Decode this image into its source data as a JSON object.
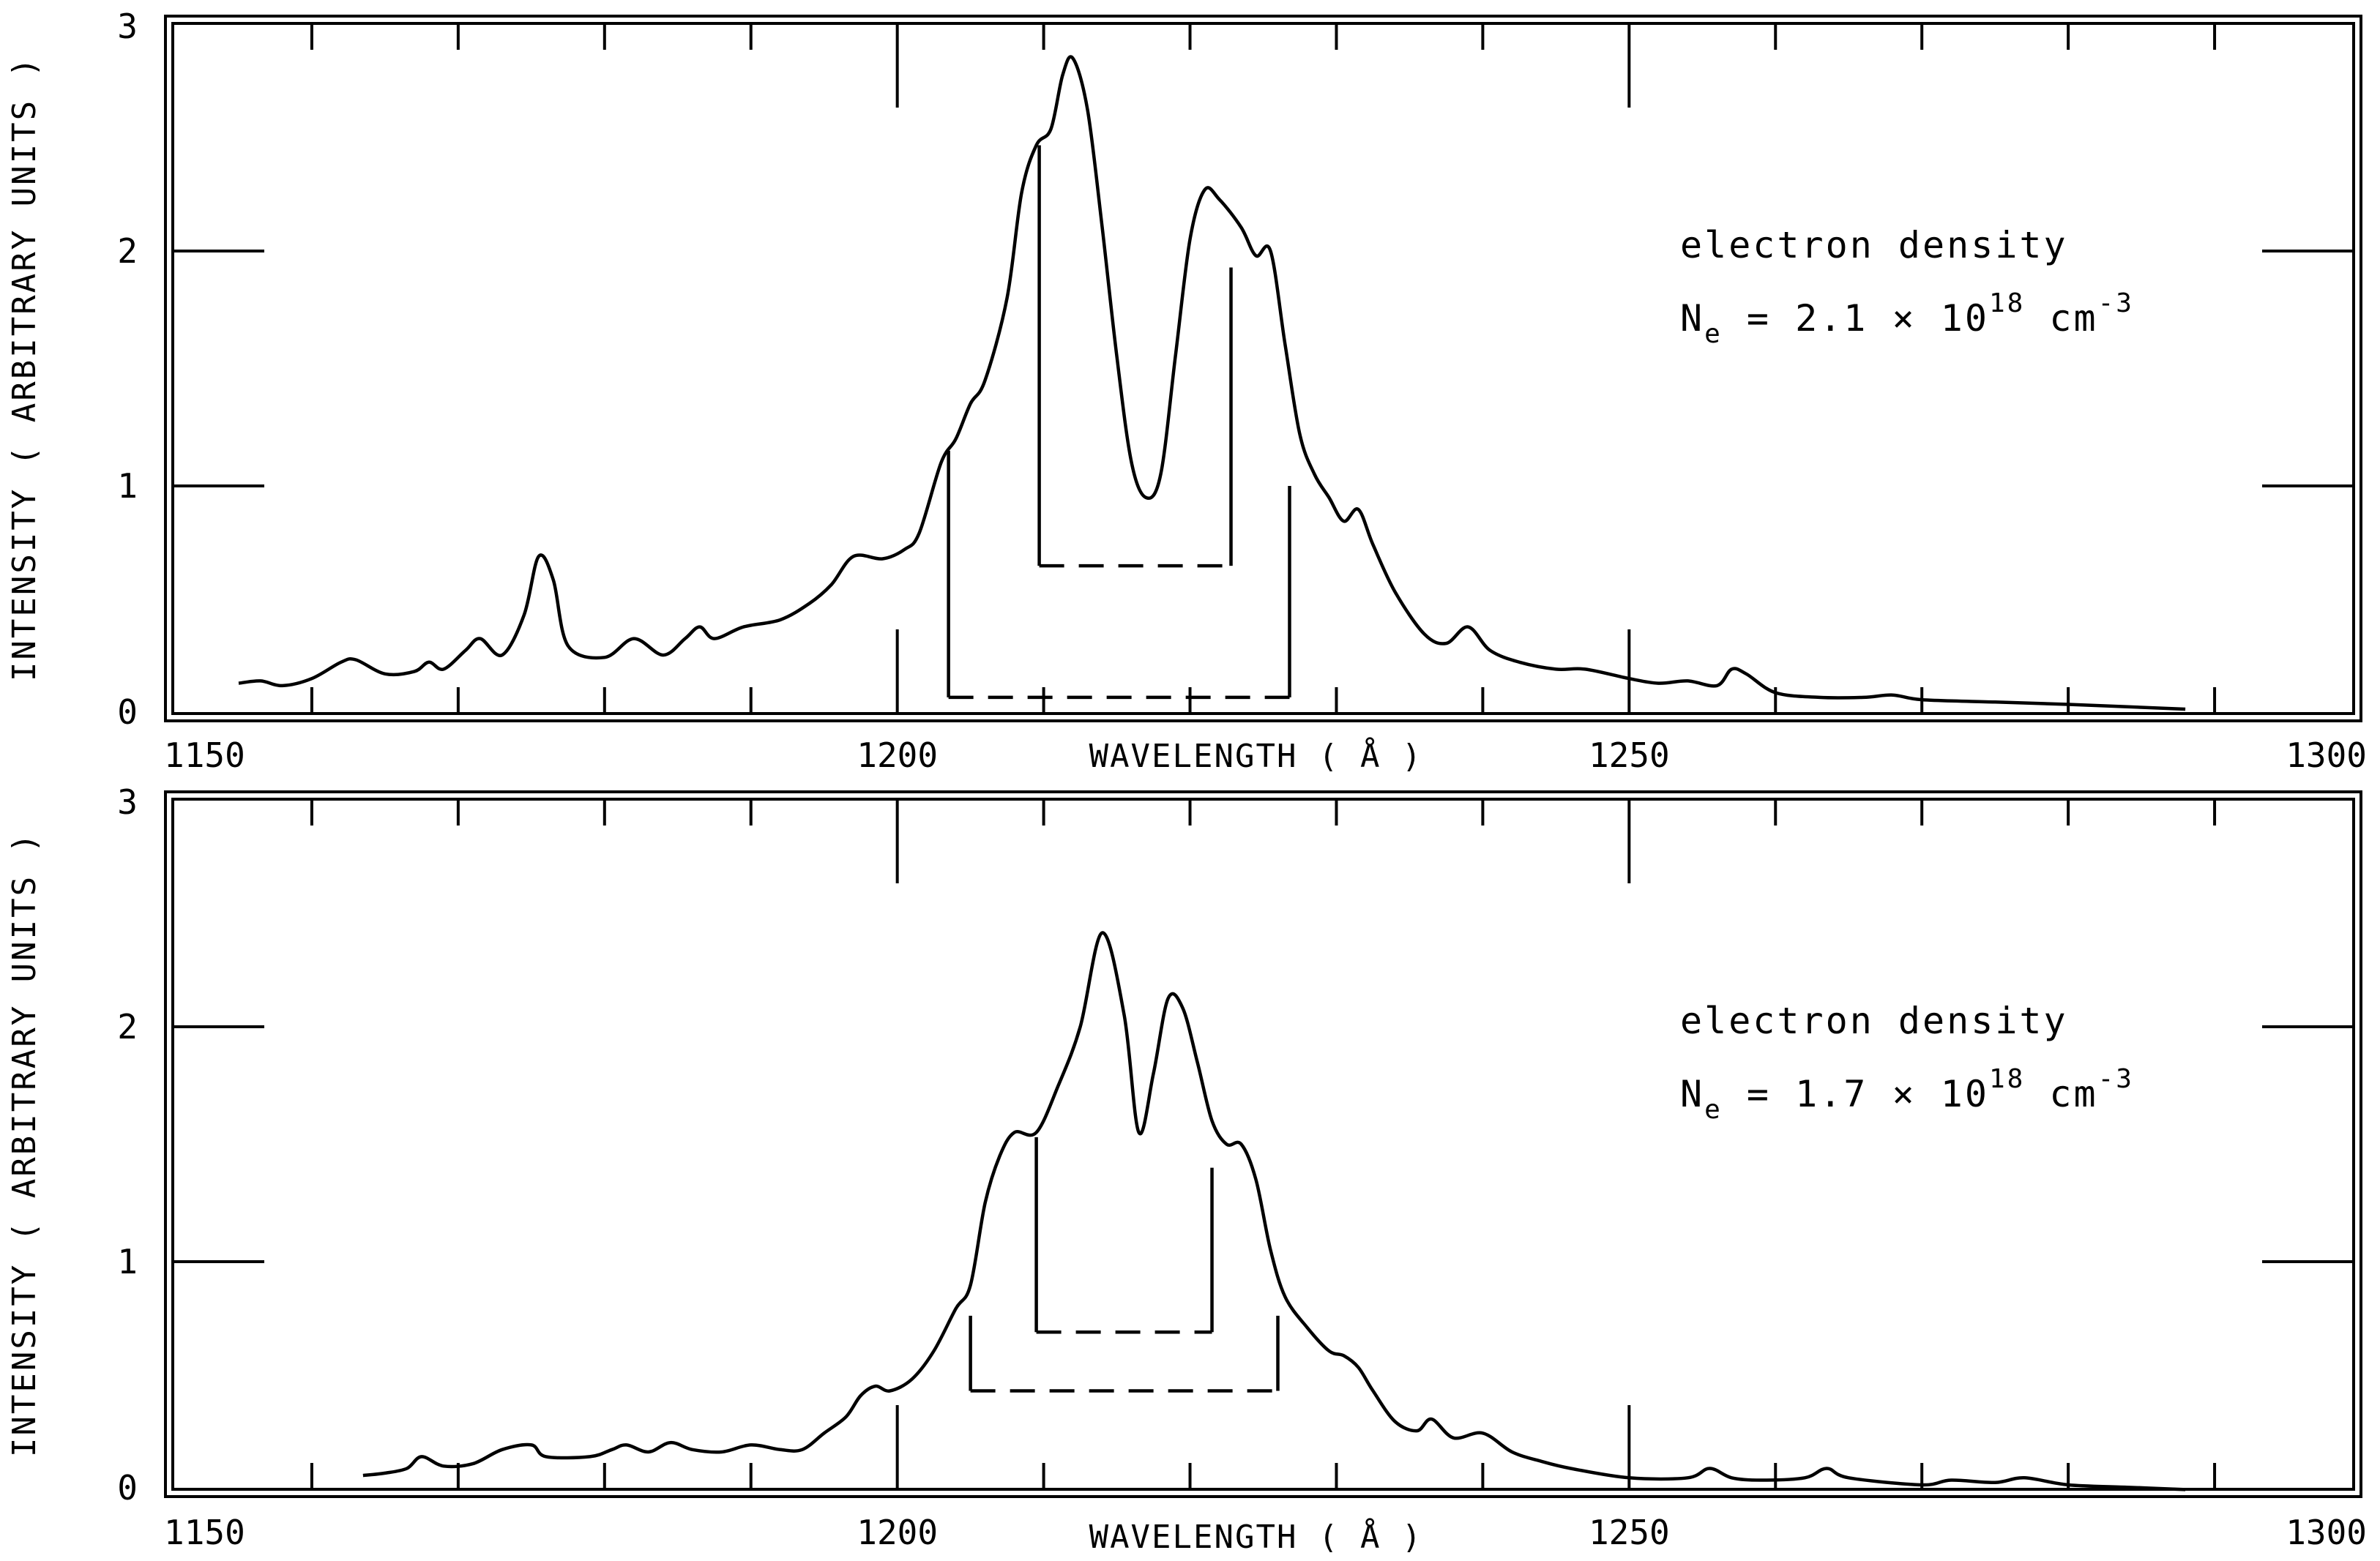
{
  "chart_data": [
    {
      "type": "line",
      "panel": "top",
      "xlabel": "WAVELENGTH ( Å )",
      "ylabel": "INTENSITY ( ARBITRARY UNITS )",
      "xlim": [
        1150,
        1300
      ],
      "ylim": [
        0,
        3
      ],
      "x_ticks": [
        1150,
        1200,
        1250,
        1300
      ],
      "y_ticks": [
        0,
        1,
        2,
        3
      ],
      "grid": false,
      "annotation": {
        "line1": "electron density",
        "ne_prefix": "N",
        "ne_sub": "e",
        "ne_mid": "= 2.1 × 10",
        "ne_exp": "18",
        "ne_unit": " cm",
        "ne_unit_exp": "-3"
      },
      "series": [
        {
          "name": "spectrum",
          "points": [
            [
              1155,
              0.16
            ],
            [
              1156.5,
              0.17
            ],
            [
              1158,
              0.15
            ],
            [
              1160,
              0.18
            ],
            [
              1162,
              0.25
            ],
            [
              1163,
              0.26
            ],
            [
              1165,
              0.2
            ],
            [
              1167,
              0.21
            ],
            [
              1168,
              0.25
            ],
            [
              1169,
              0.22
            ],
            [
              1170.5,
              0.3
            ],
            [
              1171.5,
              0.35
            ],
            [
              1173,
              0.28
            ],
            [
              1174.5,
              0.45
            ],
            [
              1175.5,
              0.7
            ],
            [
              1176.5,
              0.6
            ],
            [
              1177.5,
              0.32
            ],
            [
              1180,
              0.27
            ],
            [
              1182,
              0.35
            ],
            [
              1184,
              0.28
            ],
            [
              1185.5,
              0.35
            ],
            [
              1186.5,
              0.4
            ],
            [
              1187.5,
              0.35
            ],
            [
              1189.5,
              0.4
            ],
            [
              1192,
              0.43
            ],
            [
              1194,
              0.5
            ],
            [
              1195.5,
              0.58
            ],
            [
              1197,
              0.7
            ],
            [
              1199,
              0.69
            ],
            [
              1200.5,
              0.73
            ],
            [
              1201.5,
              0.8
            ],
            [
              1203,
              1.1
            ],
            [
              1204,
              1.2
            ],
            [
              1205,
              1.35
            ],
            [
              1206,
              1.45
            ],
            [
              1207.5,
              1.8
            ],
            [
              1208.5,
              2.25
            ],
            [
              1209.5,
              2.45
            ],
            [
              1210.5,
              2.52
            ],
            [
              1211.3,
              2.75
            ],
            [
              1212,
              2.82
            ],
            [
              1213,
              2.6
            ],
            [
              1214,
              2.1
            ],
            [
              1215,
              1.55
            ],
            [
              1216,
              1.1
            ],
            [
              1217,
              0.95
            ],
            [
              1218,
              1.05
            ],
            [
              1219,
              1.55
            ],
            [
              1220,
              2.05
            ],
            [
              1221,
              2.26
            ],
            [
              1222,
              2.22
            ],
            [
              1223.5,
              2.1
            ],
            [
              1224.5,
              1.98
            ],
            [
              1225.5,
              2.0
            ],
            [
              1226.5,
              1.6
            ],
            [
              1227.5,
              1.22
            ],
            [
              1228.5,
              1.05
            ],
            [
              1229.5,
              0.95
            ],
            [
              1230.5,
              0.85
            ],
            [
              1231.5,
              0.9
            ],
            [
              1232.5,
              0.75
            ],
            [
              1234,
              0.55
            ],
            [
              1236,
              0.37
            ],
            [
              1237.5,
              0.33
            ],
            [
              1239,
              0.4
            ],
            [
              1240.5,
              0.3
            ],
            [
              1242.5,
              0.25
            ],
            [
              1245,
              0.22
            ],
            [
              1247,
              0.22
            ],
            [
              1250,
              0.18
            ],
            [
              1252,
              0.16
            ],
            [
              1254,
              0.17
            ],
            [
              1256,
              0.15
            ],
            [
              1257,
              0.22
            ],
            [
              1258,
              0.2
            ],
            [
              1260,
              0.12
            ],
            [
              1263,
              0.1
            ],
            [
              1266,
              0.1
            ],
            [
              1268,
              0.11
            ],
            [
              1270,
              0.09
            ],
            [
              1275,
              0.08
            ],
            [
              1280,
              0.07
            ],
            [
              1288,
              0.05
            ]
          ]
        }
      ],
      "brackets": [
        {
          "x_left": 1203.5,
          "x_right": 1226.8,
          "y_left_top": 1.15,
          "y_right_top": 1.0,
          "y_base": 0.1
        },
        {
          "x_left": 1209.7,
          "x_right": 1222.8,
          "y_left_top": 2.45,
          "y_right_top": 1.93,
          "y_base": 0.66
        }
      ]
    },
    {
      "type": "line",
      "panel": "bottom",
      "xlabel": "WAVELENGTH ( Å )",
      "ylabel": "INTENSITY ( ARBITRARY UNITS )",
      "xlim": [
        1150,
        1300
      ],
      "ylim": [
        0,
        3
      ],
      "x_ticks": [
        1150,
        1200,
        1250,
        1300
      ],
      "y_ticks": [
        0,
        1,
        2,
        3
      ],
      "grid": false,
      "annotation": {
        "line1": "electron density",
        "ne_prefix": "N",
        "ne_sub": "e",
        "ne_mid": "= 1.7 × 10",
        "ne_exp": "18",
        "ne_unit": " cm",
        "ne_unit_exp": "-3"
      },
      "series": [
        {
          "name": "spectrum",
          "points": [
            [
              1163.5,
              0.09
            ],
            [
              1165,
              0.1
            ],
            [
              1166.5,
              0.12
            ],
            [
              1167.5,
              0.17
            ],
            [
              1169,
              0.13
            ],
            [
              1171,
              0.14
            ],
            [
              1173,
              0.2
            ],
            [
              1175,
              0.22
            ],
            [
              1176,
              0.17
            ],
            [
              1179,
              0.17
            ],
            [
              1180.5,
              0.2
            ],
            [
              1181.5,
              0.22
            ],
            [
              1183,
              0.19
            ],
            [
              1184.5,
              0.23
            ],
            [
              1186,
              0.2
            ],
            [
              1188,
              0.19
            ],
            [
              1190,
              0.22
            ],
            [
              1192,
              0.2
            ],
            [
              1193.5,
              0.2
            ],
            [
              1195,
              0.27
            ],
            [
              1196.5,
              0.34
            ],
            [
              1197.5,
              0.43
            ],
            [
              1198.5,
              0.47
            ],
            [
              1199.5,
              0.45
            ],
            [
              1201,
              0.5
            ],
            [
              1202.5,
              0.62
            ],
            [
              1204,
              0.8
            ],
            [
              1205,
              0.9
            ],
            [
              1206,
              1.25
            ],
            [
              1207,
              1.45
            ],
            [
              1208,
              1.55
            ],
            [
              1209.5,
              1.55
            ],
            [
              1211,
              1.75
            ],
            [
              1212.5,
              2.0
            ],
            [
              1214,
              2.4
            ],
            [
              1215.5,
              2.05
            ],
            [
              1216.5,
              1.55
            ],
            [
              1217.5,
              1.8
            ],
            [
              1218.5,
              2.12
            ],
            [
              1219.5,
              2.08
            ],
            [
              1220.5,
              1.85
            ],
            [
              1221.5,
              1.6
            ],
            [
              1222.5,
              1.5
            ],
            [
              1223.5,
              1.5
            ],
            [
              1224.5,
              1.35
            ],
            [
              1225.5,
              1.05
            ],
            [
              1226.5,
              0.85
            ],
            [
              1228,
              0.72
            ],
            [
              1229.5,
              0.62
            ],
            [
              1230.5,
              0.6
            ],
            [
              1231.5,
              0.55
            ],
            [
              1232.5,
              0.45
            ],
            [
              1234,
              0.32
            ],
            [
              1235.5,
              0.28
            ],
            [
              1236.5,
              0.33
            ],
            [
              1238,
              0.25
            ],
            [
              1240,
              0.27
            ],
            [
              1242,
              0.19
            ],
            [
              1244,
              0.15
            ],
            [
              1246,
              0.12
            ],
            [
              1250,
              0.08
            ],
            [
              1254,
              0.08
            ],
            [
              1255.5,
              0.12
            ],
            [
              1257,
              0.08
            ],
            [
              1259,
              0.07
            ],
            [
              1262,
              0.08
            ],
            [
              1263.5,
              0.12
            ],
            [
              1265,
              0.08
            ],
            [
              1270,
              0.05
            ],
            [
              1272,
              0.07
            ],
            [
              1275,
              0.06
            ],
            [
              1277,
              0.08
            ],
            [
              1280,
              0.05
            ],
            [
              1284,
              0.04
            ],
            [
              1288,
              0.03
            ]
          ]
        }
      ],
      "brackets": [
        {
          "x_left": 1205,
          "x_right": 1226,
          "y_left_top": 0.77,
          "y_right_top": 0.77,
          "y_base": 0.45
        },
        {
          "x_left": 1209.5,
          "x_right": 1221.5,
          "y_left_top": 1.53,
          "y_right_top": 1.4,
          "y_base": 0.7
        }
      ]
    }
  ]
}
